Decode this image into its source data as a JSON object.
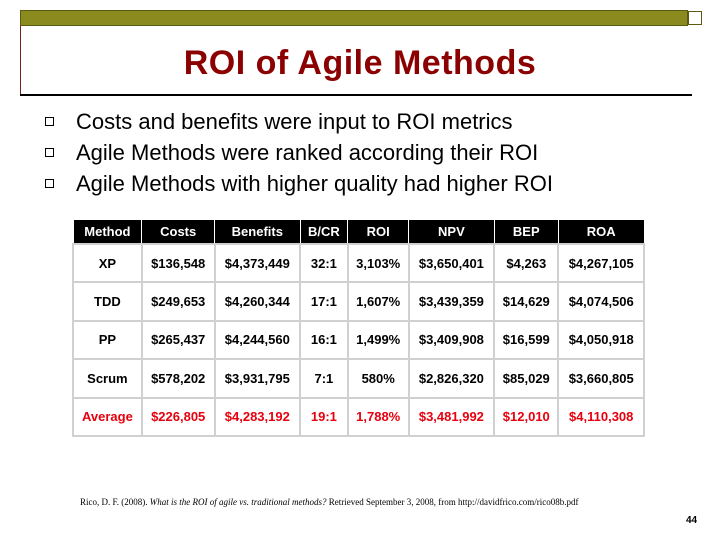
{
  "slide": {
    "title": "ROI of Agile Methods",
    "bullets": [
      "Costs and benefits were input to ROI metrics",
      "Agile Methods were ranked according their ROI",
      "Agile Methods with higher quality had higher ROI"
    ],
    "table": {
      "headers": [
        "Method",
        "Costs",
        "Benefits",
        "B/CR",
        "ROI",
        "NPV",
        "BEP",
        "ROA"
      ],
      "rows": [
        [
          "XP",
          "$136,548",
          "$4,373,449",
          "32:1",
          "3,103%",
          "$3,650,401",
          "$4,263",
          "$4,267,105"
        ],
        [
          "TDD",
          "$249,653",
          "$4,260,344",
          "17:1",
          "1,607%",
          "$3,439,359",
          "$14,629",
          "$4,074,506"
        ],
        [
          "PP",
          "$265,437",
          "$4,244,560",
          "16:1",
          "1,499%",
          "$3,409,908",
          "$16,599",
          "$4,050,918"
        ],
        [
          "Scrum",
          "$578,202",
          "$3,931,795",
          "7:1",
          "580%",
          "$2,826,320",
          "$85,029",
          "$3,660,805"
        ]
      ],
      "average": [
        "Average",
        "$226,805",
        "$4,283,192",
        "19:1",
        "1,788%",
        "$3,481,992",
        "$12,010",
        "$4,110,308"
      ]
    },
    "citation": {
      "prefix": "Rico, D. F. (2008). ",
      "italic": "What is the ROI of agile vs. traditional methods?",
      "suffix": " Retrieved September 3, 2008, from http://davidfrico.com/rico08b.pdf"
    },
    "page_number": "44",
    "colors": {
      "title": "#8b0000",
      "top_bar": "#8a8a1e",
      "average_row": "#e8000d"
    }
  }
}
